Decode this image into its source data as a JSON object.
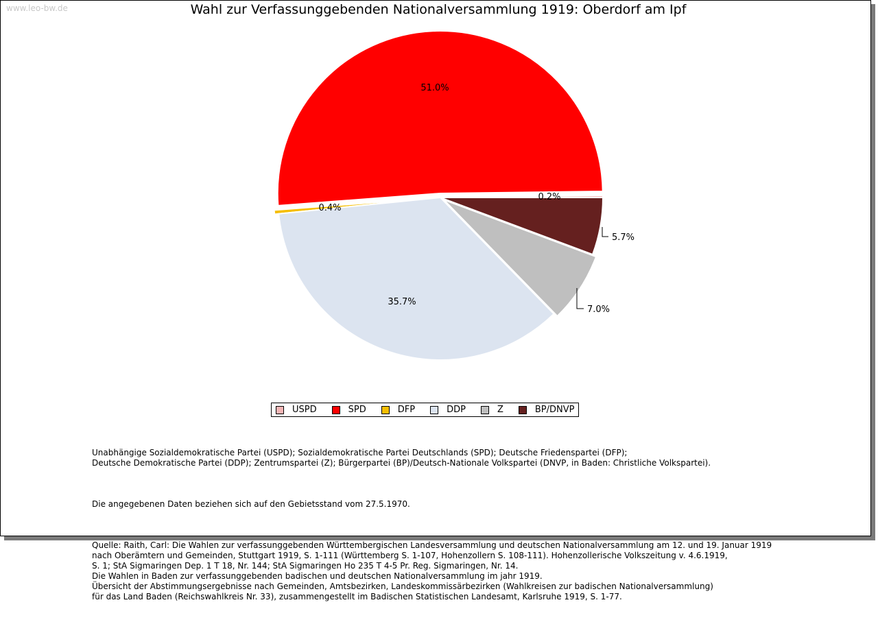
{
  "watermark": "www.leo-bw.de",
  "colors": {
    "USPD": "#f4b6b6",
    "SPD": "#ff0000",
    "DFP": "#f5be00",
    "DDP": "#dce4f0",
    "Z": "#bfbfbf",
    "BP/DNVP": "#65201f"
  },
  "chart_data": {
    "type": "pie",
    "title": "Wahl zur Verfassunggebenden Nationalversammlung 1919: Oberdorf am Ipf",
    "series": [
      {
        "name": "USPD",
        "value": 0.2,
        "label": "0.2%"
      },
      {
        "name": "SPD",
        "value": 51.0,
        "label": "51.0%"
      },
      {
        "name": "DFP",
        "value": 0.4,
        "label": "0.4%"
      },
      {
        "name": "DDP",
        "value": 35.7,
        "label": "35.7%"
      },
      {
        "name": "Z",
        "value": 7.0,
        "label": "7.0%"
      },
      {
        "name": "BP/DNVP",
        "value": 5.7,
        "label": "5.7%"
      }
    ],
    "legend_position": "bottom"
  },
  "notes": {
    "parties": "Unabhängige Sozialdemokratische Partei (USPD); Sozialdemokratische Partei Deutschlands (SPD); Deutsche Friedenspartei (DFP);\nDeutsche Demokratische Partei (DDP); Zentrumspartei (Z); Bürgerpartei (BP)/Deutsch-Nationale Volkspartei (DNVP, in Baden: Christliche Volkspartei).",
    "territory": "Die angegebenen Daten beziehen sich auf den Gebietsstand vom 27.5.1970.",
    "source": "Quelle: Raith, Carl: Die Wahlen zur verfassunggebenden Württembergischen Landesversammlung und deutschen Nationalversammlung am 12. und 19. Januar 1919\nnach Oberämtern und Gemeinden, Stuttgart 1919, S. 1-111 (Württemberg S. 1-107, Hohenzollern S. 108-111). Hohenzollerische Volkszeitung v. 4.6.1919,\nS. 1; StA Sigmaringen Dep. 1 T 18, Nr. 144; StA Sigmaringen Ho 235 T 4-5 Pr. Reg. Sigmaringen, Nr. 14.\nDie Wahlen in Baden zur verfassunggebenden badischen und deutschen Nationalversammlung im jahr 1919.\nÜbersicht der Abstimmungsergebnisse nach Gemeinden, Amtsbezirken, Landeskommissärbezirken (Wahlkreisen zur badischen Nationalversammlung)\nfür das Land Baden (Reichswahlkreis Nr. 33), zusammengestellt im Badischen Statistischen Landesamt, Karlsruhe 1919, S. 1-77."
  }
}
